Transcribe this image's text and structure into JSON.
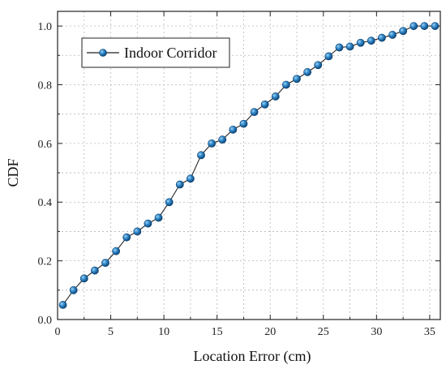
{
  "chart_data": {
    "type": "line",
    "title": "",
    "xlabel": "Location Error (cm)",
    "ylabel": "CDF",
    "xlim": [
      0,
      36
    ],
    "ylim": [
      0,
      1.05
    ],
    "xticks": [
      0,
      5,
      10,
      15,
      20,
      25,
      30,
      35
    ],
    "yticks": [
      0.0,
      0.2,
      0.4,
      0.6,
      0.8,
      1.0
    ],
    "xtick_labels": [
      "0",
      "5",
      "10",
      "15",
      "20",
      "25",
      "30",
      "35"
    ],
    "ytick_labels": [
      "0.0",
      "0.2",
      "0.4",
      "0.6",
      "0.8",
      "1.0"
    ],
    "grid": true,
    "legend_position": "top-left",
    "series": [
      {
        "name": "Indoor Corridor",
        "color": "#1f6fb2",
        "marker": "circle",
        "x": [
          0.5,
          1.5,
          2.5,
          3.5,
          4.5,
          5.5,
          6.5,
          7.5,
          8.5,
          9.5,
          10.5,
          11.5,
          12.5,
          13.5,
          14.5,
          15.5,
          16.5,
          17.5,
          18.5,
          19.5,
          20.5,
          21.5,
          22.5,
          23.5,
          24.5,
          25.5,
          26.5,
          27.5,
          28.5,
          29.5,
          30.5,
          31.5,
          32.5,
          33.5,
          34.5,
          35.5
        ],
        "y": [
          0.05,
          0.1,
          0.14,
          0.167,
          0.193,
          0.233,
          0.28,
          0.3,
          0.327,
          0.347,
          0.4,
          0.46,
          0.48,
          0.56,
          0.6,
          0.613,
          0.647,
          0.667,
          0.707,
          0.733,
          0.76,
          0.8,
          0.82,
          0.843,
          0.867,
          0.897,
          0.927,
          0.93,
          0.943,
          0.95,
          0.96,
          0.97,
          0.983,
          1.0,
          1.0,
          1.0
        ]
      }
    ]
  }
}
